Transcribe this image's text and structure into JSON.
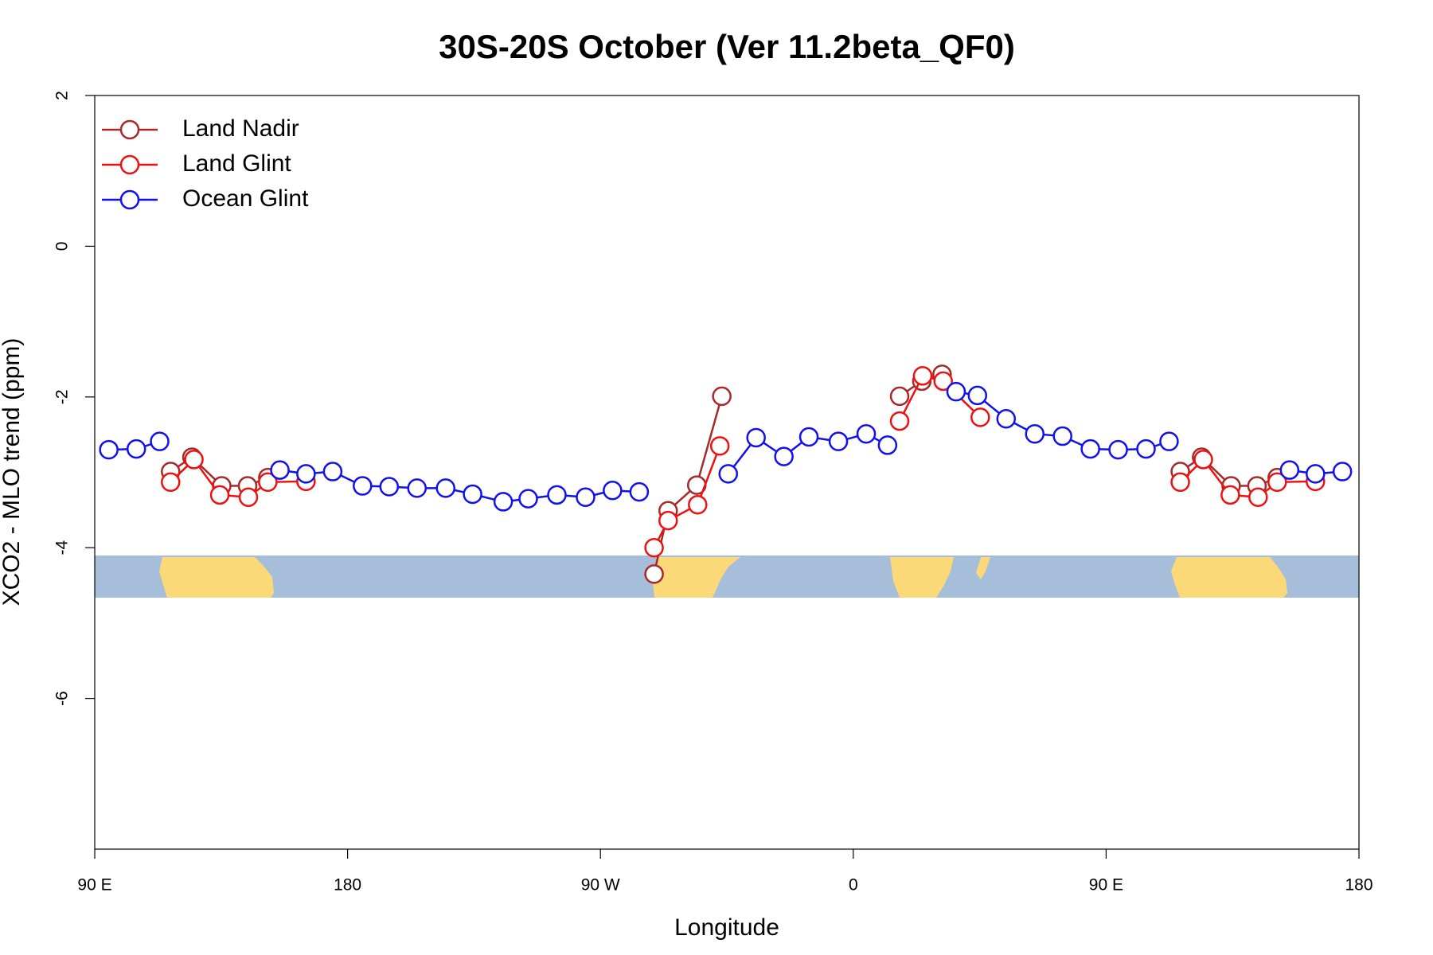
{
  "chart_data": {
    "type": "line",
    "title": "30S-20S October (Ver 11.2beta_QF0)",
    "x_label": "Longitude",
    "y_label": "XCO2 - MLO trend (ppm)",
    "xlim": [
      90,
      540
    ],
    "xticks": [
      {
        "value": 90,
        "label": "90 E"
      },
      180,
      {
        "value": 270,
        "label": "90 W"
      },
      {
        "value": 360,
        "label": "0"
      },
      {
        "value": 450,
        "label": "90 E"
      },
      {
        "value": 540,
        "label": "180"
      }
    ],
    "ylim": [
      -8,
      2
    ],
    "yticks": [
      2,
      0,
      -2,
      -4,
      -6
    ],
    "legend": "top-left",
    "series": [
      {
        "name": "Land Nadir",
        "color": "#a52a2a",
        "x": [
          117.0,
          124.6,
          135.2,
          144.4,
          151.6,
          null,
          289.1,
          294.1,
          304.3,
          313.2,
          null,
          376.5,
          384.4,
          391.6,
          null,
          476.4,
          484.0,
          494.5,
          503.7,
          510.9
        ],
        "values": [
          -2.99,
          -2.8,
          -3.18,
          -3.18,
          -3.07,
          null,
          -4.35,
          -3.51,
          -3.17,
          -1.99,
          null,
          -1.99,
          -1.79,
          -1.7,
          null,
          -2.99,
          -2.8,
          -3.18,
          -3.18,
          -3.07
        ]
      },
      {
        "name": "Land Glint",
        "color": "#ee1111",
        "x": [
          117.0,
          125.3,
          134.5,
          144.7,
          151.6,
          165.2,
          null,
          289.1,
          294.1,
          304.6,
          312.5,
          null,
          376.5,
          384.7,
          392.0,
          405.2,
          null,
          476.4,
          484.6,
          494.2,
          504.1,
          510.9,
          524.5
        ],
        "values": [
          -3.13,
          -2.83,
          -3.3,
          -3.33,
          -3.13,
          -3.12,
          null,
          -4.0,
          -3.64,
          -3.43,
          -2.65,
          null,
          -2.32,
          -1.72,
          -1.79,
          -2.27,
          null,
          -3.13,
          -2.83,
          -3.3,
          -3.33,
          -3.13,
          -3.12
        ]
      },
      {
        "name": "Ocean Glint",
        "color": "#1111ee",
        "x": [
          95.0,
          104.8,
          113.1,
          null,
          155.9,
          165.2,
          174.7,
          185.3,
          194.8,
          204.7,
          214.9,
          224.5,
          235.4,
          244.3,
          254.5,
          264.7,
          274.3,
          283.8,
          null,
          315.5,
          325.4,
          335.3,
          344.2,
          354.7,
          364.6,
          372.2,
          null,
          396.6,
          404.2,
          414.4,
          424.6,
          434.5,
          444.4,
          454.3,
          464.2,
          472.4,
          null,
          515.3,
          524.5,
          534.1
        ],
        "values": [
          -2.7,
          -2.69,
          -2.59,
          null,
          -2.97,
          -3.02,
          -2.99,
          -3.18,
          -3.19,
          -3.21,
          -3.21,
          -3.29,
          -3.39,
          -3.35,
          -3.3,
          -3.33,
          -3.24,
          -3.26,
          null,
          -3.02,
          -2.54,
          -2.79,
          -2.53,
          -2.59,
          -2.49,
          -2.64,
          null,
          -1.93,
          -1.98,
          -2.29,
          -2.49,
          -2.52,
          -2.69,
          -2.7,
          -2.69,
          -2.59,
          null,
          -2.97,
          -3.02,
          -2.99
        ]
      }
    ]
  }
}
